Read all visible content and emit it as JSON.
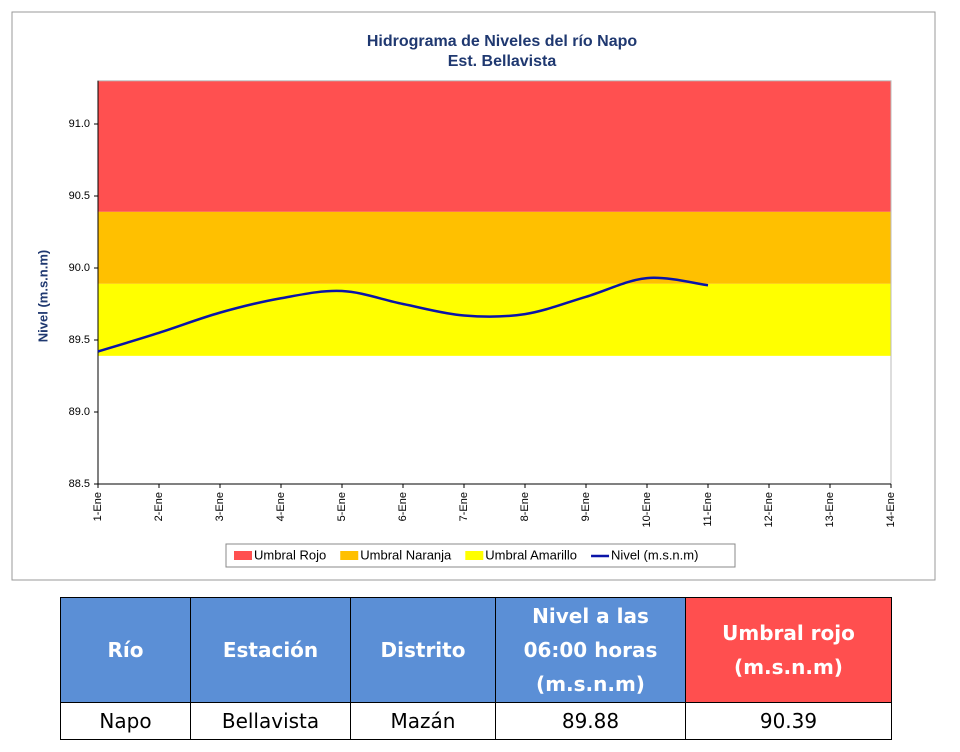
{
  "chart_data": {
    "type": "line",
    "title": "Hidrograma de Niveles del río Napo",
    "subtitle": "Est. Bellavista",
    "y_label": "Nivel (m.s.n.m)",
    "categories": [
      "1-Ene",
      "2-Ene",
      "3-Ene",
      "4-Ene",
      "5-Ene",
      "6-Ene",
      "7-Ene",
      "8-Ene",
      "9-Ene",
      "10-Ene",
      "11-Ene",
      "12-Ene",
      "13-Ene",
      "14-Ene"
    ],
    "bands": [
      {
        "name": "Umbral Rojo",
        "color": "#ff5050",
        "from": 90.39
      },
      {
        "name": "Umbral Naranja",
        "color": "#ffc000",
        "from": 89.89
      },
      {
        "name": "Umbral Amarillo",
        "color": "#ffff00",
        "from": 89.39
      }
    ],
    "series": [
      {
        "name": "Nivel (m.s.n.m)",
        "color": "#0a14a8",
        "values": [
          89.42,
          89.55,
          89.69,
          89.79,
          89.84,
          89.75,
          89.67,
          89.68,
          89.8,
          89.93,
          89.88,
          null,
          null,
          null
        ]
      }
    ],
    "ylim": [
      88.5,
      91.3
    ],
    "yticks": [
      {
        "value": 88.5,
        "label": "88.5"
      },
      {
        "value": 89,
        "label": "89.0"
      },
      {
        "value": 89.5,
        "label": "89.5"
      },
      {
        "value": 90,
        "label": "90.0"
      },
      {
        "value": 90.5,
        "label": "90.5"
      },
      {
        "value": 91,
        "label": "91.0"
      }
    ]
  },
  "table": {
    "header": [
      "Río",
      "Estación",
      "Distrito",
      "Nivel a las 06:00 horas (m.s.n.m)",
      "Umbral rojo (m.s.n.m)"
    ],
    "rows": [
      [
        "Napo",
        "Bellavista",
        "Mazán",
        "89.88",
        "90.39"
      ]
    ]
  }
}
